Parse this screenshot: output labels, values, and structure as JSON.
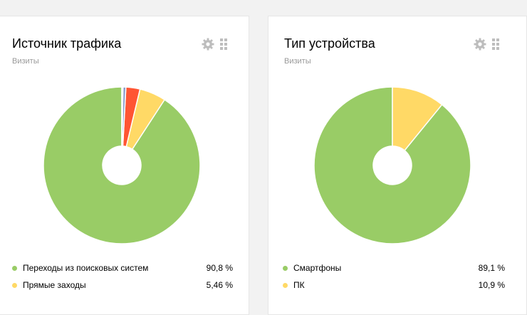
{
  "widgets": [
    {
      "title": "Источник трафика",
      "subtitle": "Визиты",
      "icons": [
        "gear-icon",
        "drag-handle-icon"
      ],
      "chart_data": {
        "type": "pie",
        "title": "Источник трафика",
        "slices": [
          {
            "label": "Переходы из поисковых систем",
            "value": 90.8,
            "display": "90,8 %",
            "color": "#99cc66"
          },
          {
            "label": "Прямые заходы",
            "value": 5.46,
            "display": "5,46 %",
            "color": "#ffd966"
          },
          {
            "value": 2.9,
            "color": "#ff5533"
          },
          {
            "value": 0.6,
            "color": "#8899cc"
          },
          {
            "value": 0.24,
            "color": "#c7c7c7"
          }
        ]
      }
    },
    {
      "title": "Тип устройства",
      "subtitle": "Визиты",
      "icons": [
        "gear-icon",
        "drag-handle-icon"
      ],
      "chart_data": {
        "type": "pie",
        "title": "Тип устройства",
        "slices": [
          {
            "label": "Смартфоны",
            "value": 89.1,
            "display": "89,1 %",
            "color": "#99cc66"
          },
          {
            "label": "ПК",
            "value": 10.9,
            "display": "10,9 %",
            "color": "#ffd966"
          }
        ]
      }
    }
  ],
  "colors": {
    "icon": "#bdbdbd",
    "subtitle": "#999999",
    "card_border": "#e6e6e6"
  }
}
